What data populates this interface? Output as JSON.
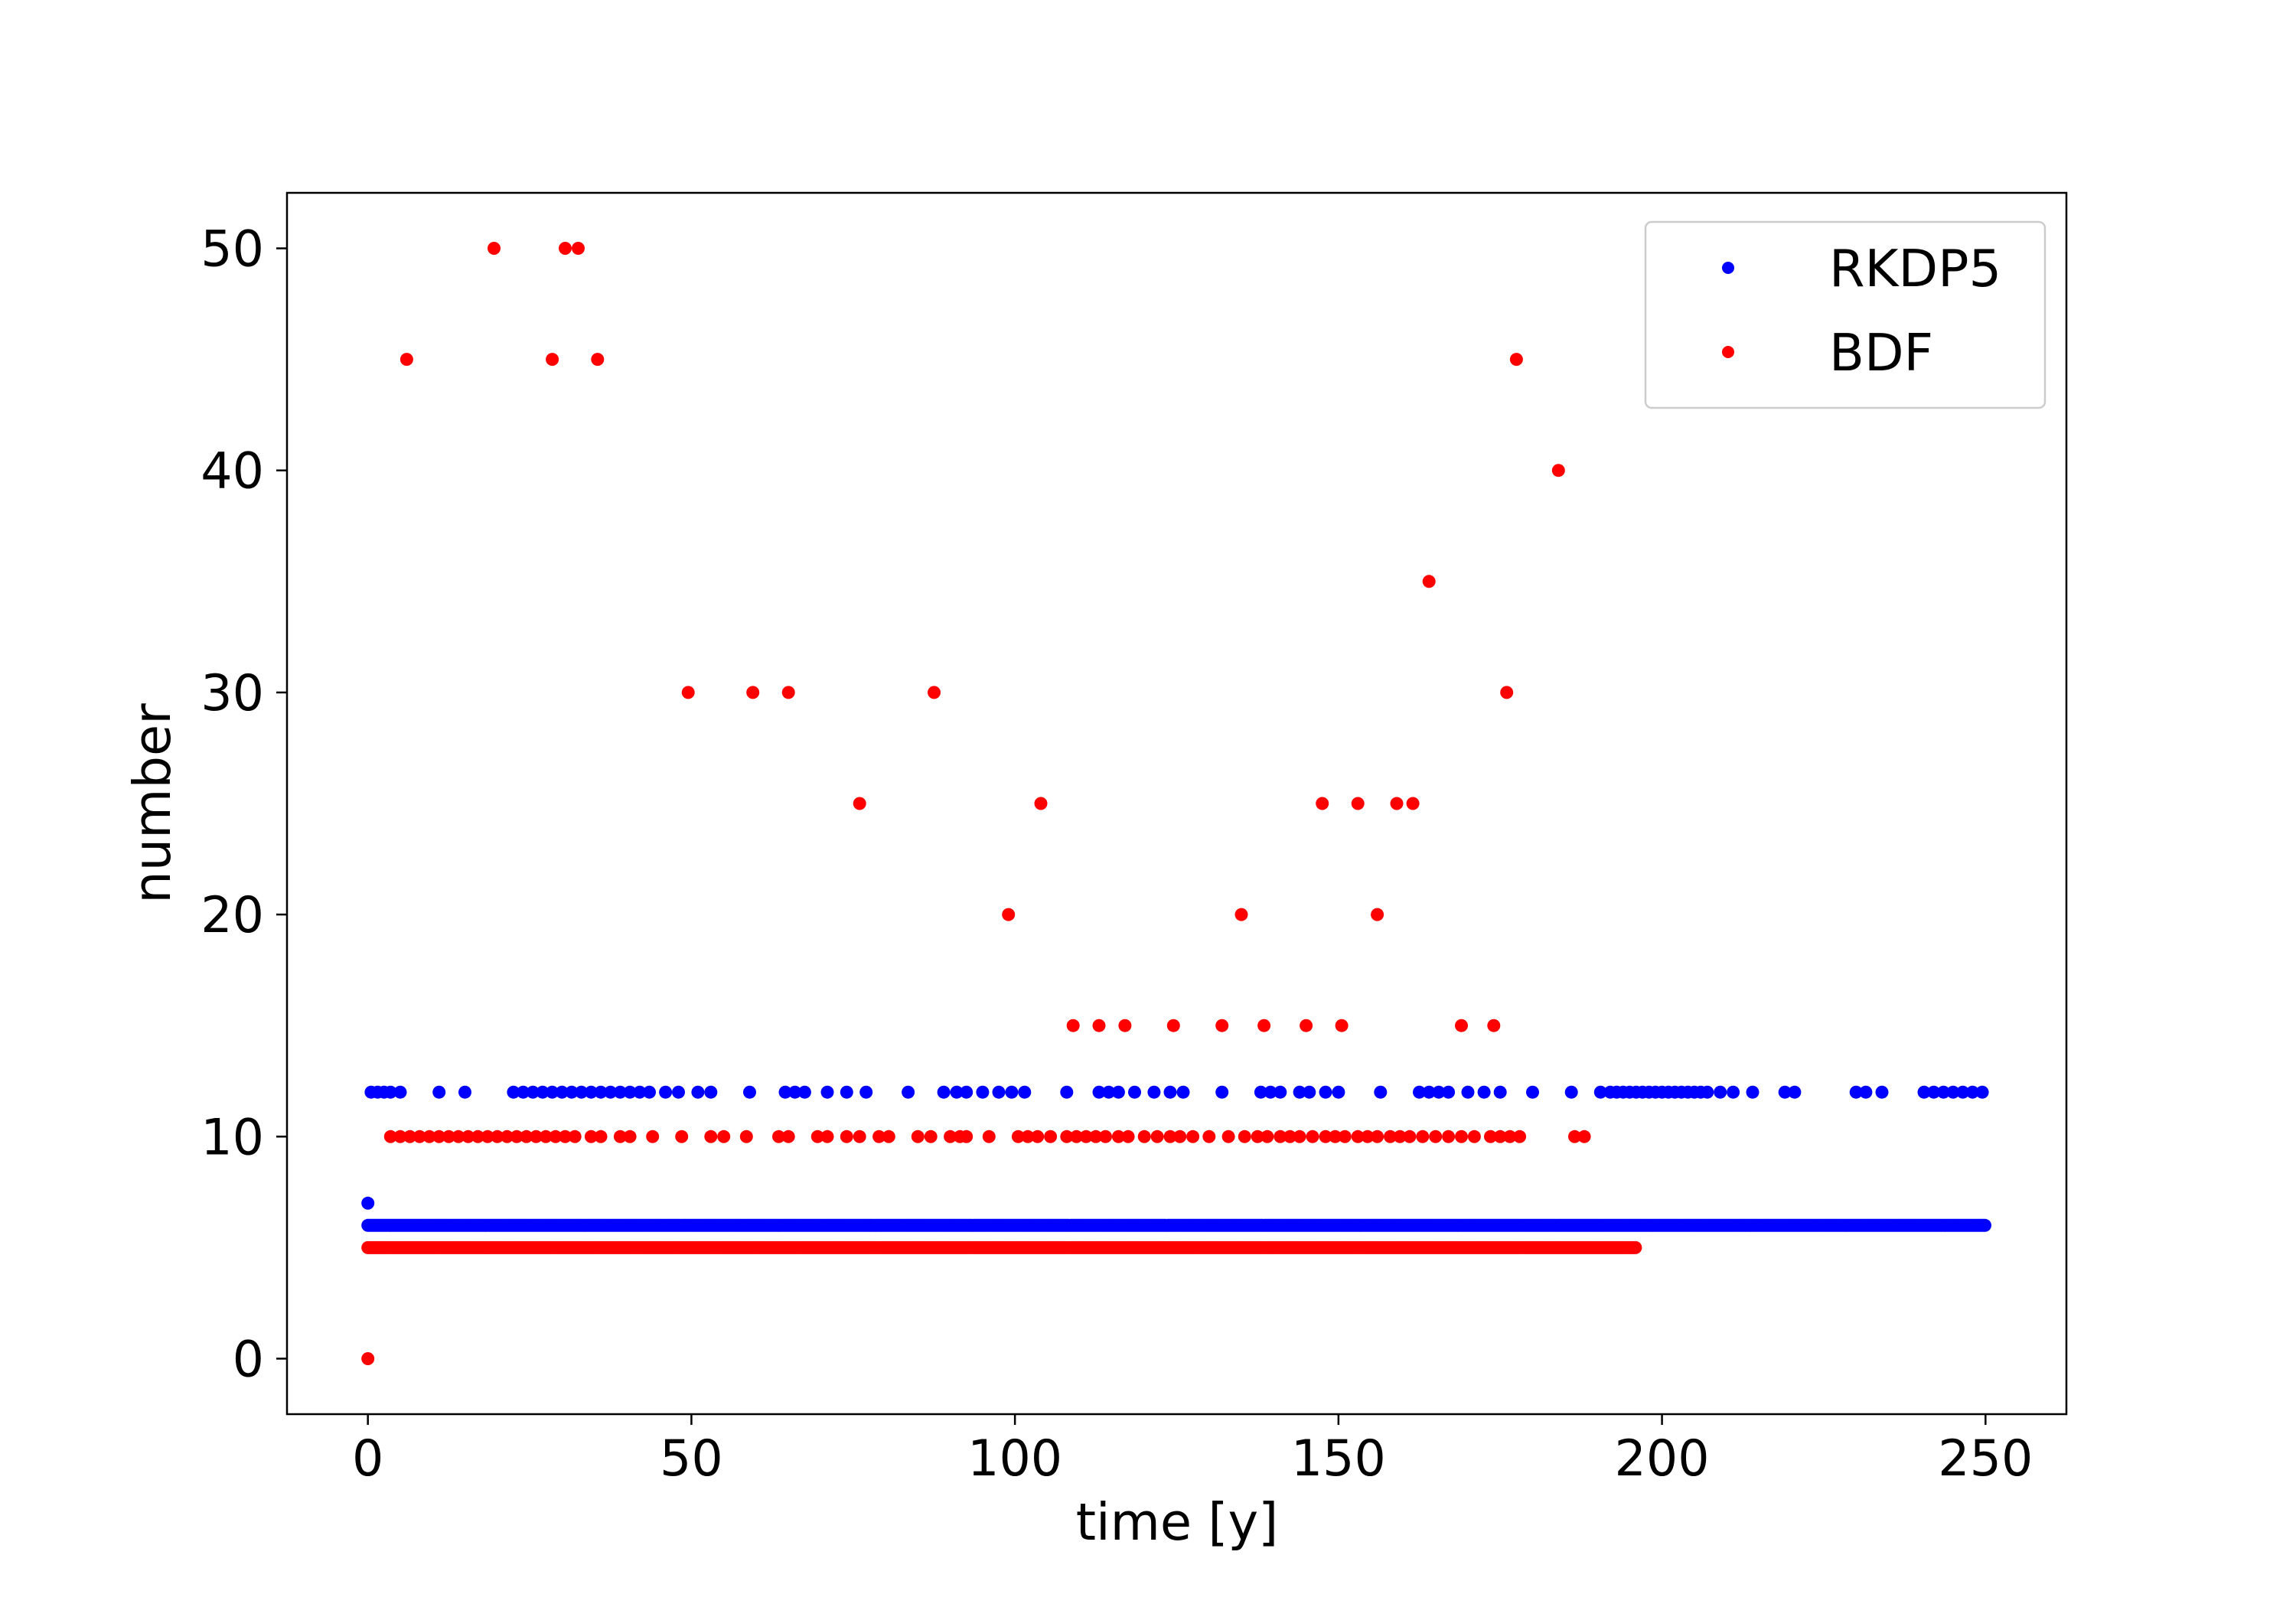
{
  "chart_data": {
    "type": "scatter",
    "title": "",
    "xlabel": "time [y]",
    "ylabel": "number",
    "xlim": [
      -12.5,
      262.5
    ],
    "ylim": [
      -2.5,
      52.5
    ],
    "xticks": [
      0,
      50,
      100,
      150,
      200,
      250
    ],
    "yticks": [
      0,
      10,
      20,
      30,
      40,
      50
    ],
    "grid": false,
    "legend_position": "top-right",
    "series": [
      {
        "name": "RKDP5",
        "color": "#0000ff",
        "points": [
          [
            0,
            7
          ],
          [
            0.5,
            12
          ],
          [
            1.5,
            12
          ],
          [
            2.5,
            12
          ],
          [
            3.5,
            12
          ],
          [
            5,
            12
          ],
          [
            11,
            12
          ],
          [
            15,
            12
          ],
          [
            22.5,
            12
          ],
          [
            24,
            12
          ],
          [
            25.5,
            12
          ],
          [
            27,
            12
          ],
          [
            28.5,
            12
          ],
          [
            30,
            12
          ],
          [
            31.5,
            12
          ],
          [
            33,
            12
          ],
          [
            34.5,
            12
          ],
          [
            36,
            12
          ],
          [
            37.5,
            12
          ],
          [
            39,
            12
          ],
          [
            40.5,
            12
          ],
          [
            42,
            12
          ],
          [
            43.5,
            12
          ],
          [
            46,
            12
          ],
          [
            48,
            12
          ],
          [
            51,
            12
          ],
          [
            53,
            12
          ],
          [
            59,
            12
          ],
          [
            64.5,
            12
          ],
          [
            66,
            12
          ],
          [
            67.5,
            12
          ],
          [
            71,
            12
          ],
          [
            74,
            12
          ],
          [
            77,
            12
          ],
          [
            83.5,
            12
          ],
          [
            89,
            12
          ],
          [
            91,
            12
          ],
          [
            92.5,
            12
          ],
          [
            95,
            12
          ],
          [
            97.5,
            12
          ],
          [
            99.5,
            12
          ],
          [
            101.5,
            12
          ],
          [
            108,
            12
          ],
          [
            113,
            12
          ],
          [
            114.5,
            12
          ],
          [
            116,
            12
          ],
          [
            118.5,
            12
          ],
          [
            121.5,
            12
          ],
          [
            124,
            12
          ],
          [
            126,
            12
          ],
          [
            132,
            12
          ],
          [
            138,
            12
          ],
          [
            139.5,
            12
          ],
          [
            141,
            12
          ],
          [
            144,
            12
          ],
          [
            145.5,
            12
          ],
          [
            148,
            12
          ],
          [
            150,
            12
          ],
          [
            156.5,
            12
          ],
          [
            162.5,
            12
          ],
          [
            164,
            12
          ],
          [
            165.5,
            12
          ],
          [
            167,
            12
          ],
          [
            170,
            12
          ],
          [
            172.5,
            12
          ],
          [
            175,
            12
          ],
          [
            180,
            12
          ],
          [
            186,
            12
          ],
          [
            190.5,
            12
          ],
          [
            192,
            12
          ],
          [
            193,
            12
          ],
          [
            194,
            12
          ],
          [
            195,
            12
          ],
          [
            196,
            12
          ],
          [
            197,
            12
          ],
          [
            198,
            12
          ],
          [
            199,
            12
          ],
          [
            200,
            12
          ],
          [
            201,
            12
          ],
          [
            202,
            12
          ],
          [
            203,
            12
          ],
          [
            204,
            12
          ],
          [
            205,
            12
          ],
          [
            206,
            12
          ],
          [
            207,
            12
          ],
          [
            209,
            12
          ],
          [
            211,
            12
          ],
          [
            214,
            12
          ],
          [
            219,
            12
          ],
          [
            220.5,
            12
          ],
          [
            230,
            12
          ],
          [
            231.5,
            12
          ],
          [
            234,
            12
          ],
          [
            240.5,
            12
          ],
          [
            242,
            12
          ],
          [
            243.5,
            12
          ],
          [
            245,
            12
          ],
          [
            246.5,
            12
          ],
          [
            248,
            12
          ],
          [
            249.5,
            12
          ]
        ],
        "bands": [
          {
            "y": 6,
            "x_start": 0,
            "x_end": 250
          }
        ]
      },
      {
        "name": "BDF",
        "color": "#ff0000",
        "points": [
          [
            0,
            0
          ],
          [
            6,
            45
          ],
          [
            19.5,
            50
          ],
          [
            28.5,
            45
          ],
          [
            30.5,
            50
          ],
          [
            32.5,
            50
          ],
          [
            35.5,
            45
          ],
          [
            49.5,
            30
          ],
          [
            59.5,
            30
          ],
          [
            65,
            30
          ],
          [
            76,
            25
          ],
          [
            87.5,
            30
          ],
          [
            99,
            20
          ],
          [
            104,
            25
          ],
          [
            109,
            15
          ],
          [
            113,
            15
          ],
          [
            117,
            15
          ],
          [
            124.5,
            15
          ],
          [
            132,
            15
          ],
          [
            135,
            20
          ],
          [
            138.5,
            15
          ],
          [
            145,
            15
          ],
          [
            147.5,
            25
          ],
          [
            150.5,
            15
          ],
          [
            153,
            25
          ],
          [
            156,
            20
          ],
          [
            159,
            25
          ],
          [
            161.5,
            25
          ],
          [
            164,
            35
          ],
          [
            169,
            15
          ],
          [
            174,
            15
          ],
          [
            176,
            30
          ],
          [
            177.5,
            45
          ],
          [
            184,
            40
          ],
          [
            3.5,
            10
          ],
          [
            5,
            10
          ],
          [
            6.5,
            10
          ],
          [
            8,
            10
          ],
          [
            9.5,
            10
          ],
          [
            11,
            10
          ],
          [
            12.5,
            10
          ],
          [
            14,
            10
          ],
          [
            15.5,
            10
          ],
          [
            17,
            10
          ],
          [
            18.5,
            10
          ],
          [
            20,
            10
          ],
          [
            21.5,
            10
          ],
          [
            23,
            10
          ],
          [
            24.5,
            10
          ],
          [
            26,
            10
          ],
          [
            27.5,
            10
          ],
          [
            29,
            10
          ],
          [
            30.5,
            10
          ],
          [
            32,
            10
          ],
          [
            34.5,
            10
          ],
          [
            36,
            10
          ],
          [
            39,
            10
          ],
          [
            40.5,
            10
          ],
          [
            44,
            10
          ],
          [
            48.5,
            10
          ],
          [
            53,
            10
          ],
          [
            55,
            10
          ],
          [
            58.5,
            10
          ],
          [
            63.5,
            10
          ],
          [
            65,
            10
          ],
          [
            69.5,
            10
          ],
          [
            71,
            10
          ],
          [
            74,
            10
          ],
          [
            76,
            10
          ],
          [
            79,
            10
          ],
          [
            80.5,
            10
          ],
          [
            85,
            10
          ],
          [
            87,
            10
          ],
          [
            90,
            10
          ],
          [
            91.5,
            10
          ],
          [
            92.5,
            10
          ],
          [
            96,
            10
          ],
          [
            100.5,
            10
          ],
          [
            102,
            10
          ],
          [
            103.5,
            10
          ],
          [
            105.5,
            10
          ],
          [
            108,
            10
          ],
          [
            109.5,
            10
          ],
          [
            111,
            10
          ],
          [
            112.5,
            10
          ],
          [
            114,
            10
          ],
          [
            116,
            10
          ],
          [
            117.5,
            10
          ],
          [
            120,
            10
          ],
          [
            122,
            10
          ],
          [
            124,
            10
          ],
          [
            125.5,
            10
          ],
          [
            127.5,
            10
          ],
          [
            130,
            10
          ],
          [
            133,
            10
          ],
          [
            135.5,
            10
          ],
          [
            137.5,
            10
          ],
          [
            139,
            10
          ],
          [
            141,
            10
          ],
          [
            142.5,
            10
          ],
          [
            144,
            10
          ],
          [
            146,
            10
          ],
          [
            148,
            10
          ],
          [
            149.5,
            10
          ],
          [
            151,
            10
          ],
          [
            153,
            10
          ],
          [
            154.5,
            10
          ],
          [
            156,
            10
          ],
          [
            158,
            10
          ],
          [
            159.5,
            10
          ],
          [
            161,
            10
          ],
          [
            163,
            10
          ],
          [
            165,
            10
          ],
          [
            167,
            10
          ],
          [
            169,
            10
          ],
          [
            171,
            10
          ],
          [
            173.5,
            10
          ],
          [
            175,
            10
          ],
          [
            176.5,
            10
          ],
          [
            178,
            10
          ],
          [
            186.5,
            10
          ],
          [
            188,
            10
          ]
        ],
        "bands": [
          {
            "y": 5,
            "x_start": 0,
            "x_end": 196
          }
        ]
      }
    ]
  }
}
